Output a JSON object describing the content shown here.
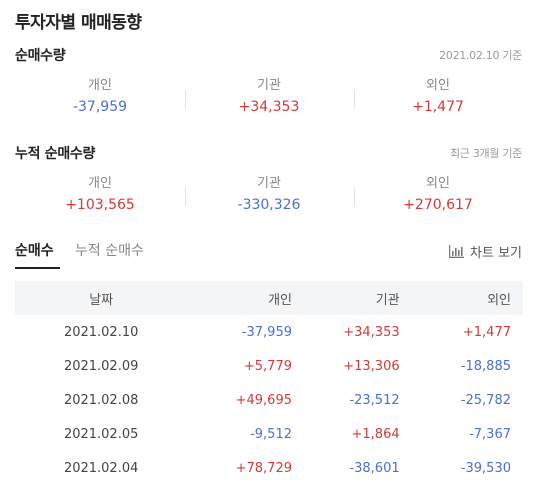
{
  "title": "투자자별 매매동향",
  "net": {
    "title": "순매수량",
    "note": "2021.02.10 기준",
    "items": [
      {
        "label": "개인",
        "value": "-37,959"
      },
      {
        "label": "기관",
        "value": "+34,353"
      },
      {
        "label": "외인",
        "value": "+1,477"
      }
    ]
  },
  "cumulative": {
    "title": "누적 순매수량",
    "note": "최근 3개월 기준",
    "items": [
      {
        "label": "개인",
        "value": "+103,565"
      },
      {
        "label": "기관",
        "value": "-330,326"
      },
      {
        "label": "외인",
        "value": "+270,617"
      }
    ]
  },
  "tabs": [
    {
      "label": "순매수",
      "active": true
    },
    {
      "label": "누적 순매수",
      "active": false
    }
  ],
  "chart_button": {
    "label": "차트 보기",
    "icon": "bar-chart-icon"
  },
  "table": {
    "headers": [
      "날짜",
      "개인",
      "기관",
      "외인"
    ],
    "rows": [
      [
        "2021.02.10",
        "-37,959",
        "+34,353",
        "+1,477"
      ],
      [
        "2021.02.09",
        "+5,779",
        "+13,306",
        "-18,885"
      ],
      [
        "2021.02.08",
        "+49,695",
        "-23,512",
        "-25,782"
      ],
      [
        "2021.02.05",
        "-9,512",
        "+1,864",
        "-7,367"
      ],
      [
        "2021.02.04",
        "+78,729",
        "-38,601",
        "-39,530"
      ]
    ]
  },
  "colors": {
    "positive": "#d43a3a",
    "negative": "#4b6fd8"
  }
}
